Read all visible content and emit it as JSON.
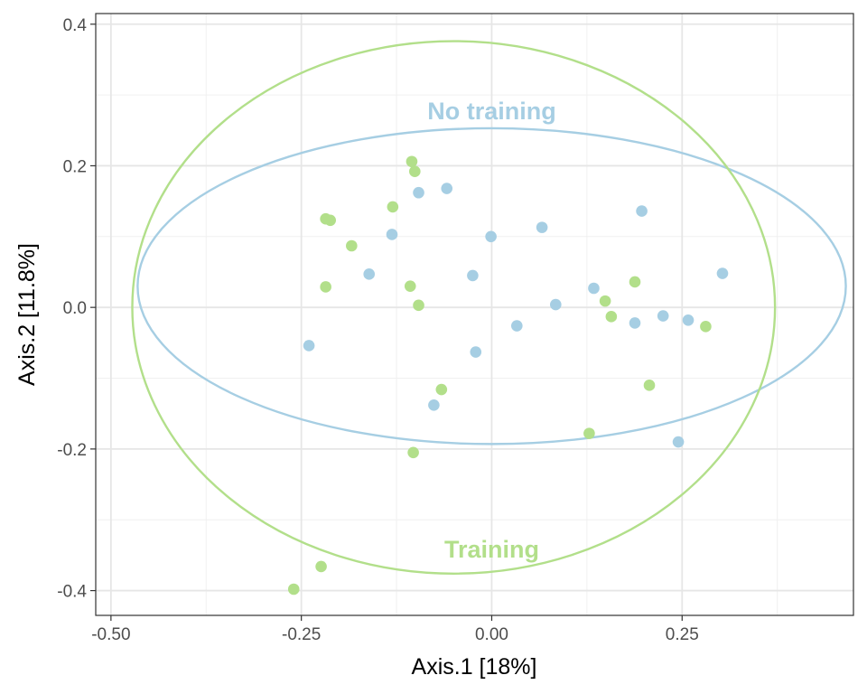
{
  "chart_data": {
    "type": "scatter",
    "xlabel": "Axis.1   [18%]",
    "ylabel": "Axis.2   [11.8%]",
    "xlim": [
      -0.52,
      0.475
    ],
    "ylim": [
      -0.435,
      0.415
    ],
    "x_ticks": [
      -0.5,
      -0.25,
      0.0,
      0.25
    ],
    "x_tick_labels": [
      "-0.50",
      "-0.25",
      "0.00",
      "0.25"
    ],
    "y_ticks": [
      -0.4,
      -0.2,
      0.0,
      0.2,
      0.4
    ],
    "y_tick_labels": [
      "-0.4",
      "-0.2",
      "0.0",
      "0.2",
      "0.4"
    ],
    "grid": true,
    "legend": "none",
    "series": [
      {
        "name": "No training",
        "color": "#a6cee3",
        "points": [
          [
            -0.096,
            0.162
          ],
          [
            -0.059,
            0.168
          ],
          [
            0.066,
            0.113
          ],
          [
            0.197,
            0.136
          ],
          [
            -0.131,
            0.103
          ],
          [
            -0.001,
            0.1
          ],
          [
            -0.161,
            0.047
          ],
          [
            -0.025,
            0.045
          ],
          [
            0.303,
            0.048
          ],
          [
            0.134,
            0.027
          ],
          [
            0.084,
            0.004
          ],
          [
            0.225,
            -0.012
          ],
          [
            0.258,
            -0.018
          ],
          [
            0.188,
            -0.022
          ],
          [
            0.033,
            -0.026
          ],
          [
            -0.24,
            -0.054
          ],
          [
            -0.021,
            -0.063
          ],
          [
            -0.076,
            -0.138
          ],
          [
            0.245,
            -0.19
          ]
        ],
        "ellipse": {
          "center": [
            0.0,
            0.03
          ],
          "half_extent_x": 0.465,
          "half_extent_y": 0.223
        }
      },
      {
        "name": "Training",
        "color": "#b2df8a",
        "points": [
          [
            -0.105,
            0.206
          ],
          [
            -0.101,
            0.192
          ],
          [
            -0.13,
            0.142
          ],
          [
            -0.218,
            0.125
          ],
          [
            -0.212,
            0.123
          ],
          [
            -0.184,
            0.087
          ],
          [
            -0.218,
            0.029
          ],
          [
            -0.107,
            0.03
          ],
          [
            -0.096,
            0.003
          ],
          [
            0.149,
            0.009
          ],
          [
            0.188,
            0.036
          ],
          [
            0.157,
            -0.013
          ],
          [
            0.281,
            -0.027
          ],
          [
            -0.066,
            -0.116
          ],
          [
            0.207,
            -0.11
          ],
          [
            0.128,
            -0.178
          ],
          [
            -0.103,
            -0.205
          ],
          [
            -0.224,
            -0.366
          ],
          [
            -0.26,
            -0.398
          ]
        ],
        "ellipse": {
          "center": [
            -0.05,
            0.0
          ],
          "half_extent_x": 0.422,
          "half_extent_y": 0.376
        }
      }
    ],
    "annotations": [
      {
        "text": "No training",
        "series": 0,
        "x": 0.0,
        "y": 0.277
      },
      {
        "text": "Training",
        "series": 1,
        "x": 0.0,
        "y": -0.342
      }
    ]
  }
}
